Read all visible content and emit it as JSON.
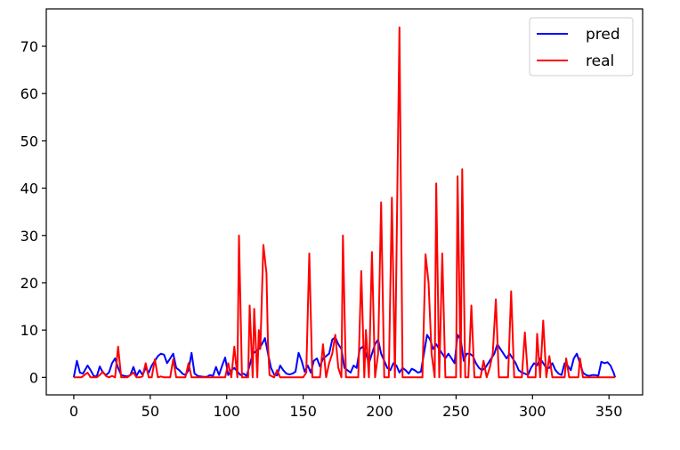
{
  "chart_data": {
    "type": "line",
    "title": "",
    "xlabel": "",
    "ylabel": "",
    "xlim": [
      -18,
      372
    ],
    "ylim": [
      -3.7,
      77.9
    ],
    "xticks": [
      0,
      50,
      100,
      150,
      200,
      250,
      300,
      350
    ],
    "yticks": [
      0,
      10,
      20,
      30,
      40,
      50,
      60,
      70
    ],
    "grid": false,
    "legend": {
      "position": "top-right",
      "entries": [
        "pred",
        "real"
      ]
    },
    "series": [
      {
        "name": "pred",
        "color": "#0000ff",
        "points": [
          [
            0,
            0
          ],
          [
            2,
            3.5
          ],
          [
            4,
            1
          ],
          [
            6,
            0.8
          ],
          [
            9,
            2.5
          ],
          [
            11,
            1.5
          ],
          [
            13,
            0.3
          ],
          [
            15,
            0.2
          ],
          [
            17,
            2.3
          ],
          [
            19,
            1
          ],
          [
            21,
            0.5
          ],
          [
            23,
            1
          ],
          [
            25,
            3
          ],
          [
            27,
            4
          ],
          [
            29,
            2
          ],
          [
            31,
            0.5
          ],
          [
            33,
            0.3
          ],
          [
            35,
            0.2
          ],
          [
            37,
            0.5
          ],
          [
            39,
            2.2
          ],
          [
            41,
            0.3
          ],
          [
            43,
            1.5
          ],
          [
            45,
            0.5
          ],
          [
            47,
            2
          ],
          [
            49,
            1
          ],
          [
            51,
            2.5
          ],
          [
            53,
            3.5
          ],
          [
            55,
            4.5
          ],
          [
            57,
            5
          ],
          [
            59,
            4.8
          ],
          [
            61,
            3
          ],
          [
            63,
            4
          ],
          [
            65,
            5
          ],
          [
            67,
            2
          ],
          [
            69,
            1.5
          ],
          [
            71,
            0.8
          ],
          [
            73,
            0.5
          ],
          [
            75,
            1.5
          ],
          [
            77,
            5.2
          ],
          [
            79,
            0.8
          ],
          [
            81,
            0.3
          ],
          [
            83,
            0.2
          ],
          [
            85,
            0.1
          ],
          [
            87,
            0.1
          ],
          [
            89,
            0.5
          ],
          [
            91,
            0.3
          ],
          [
            93,
            2.2
          ],
          [
            95,
            0.5
          ],
          [
            97,
            2.5
          ],
          [
            99,
            4.2
          ],
          [
            101,
            0.5
          ],
          [
            103,
            1.5
          ],
          [
            105,
            2
          ],
          [
            107,
            1.2
          ],
          [
            109,
            0.5
          ],
          [
            111,
            0.8
          ],
          [
            113,
            0.3
          ],
          [
            115,
            2.5
          ],
          [
            117,
            5
          ],
          [
            119,
            5.5
          ],
          [
            121,
            6
          ],
          [
            123,
            7
          ],
          [
            125,
            8.3
          ],
          [
            127,
            5
          ],
          [
            129,
            2
          ],
          [
            131,
            0.6
          ],
          [
            133,
            0.4
          ],
          [
            135,
            2.5
          ],
          [
            137,
            1.5
          ],
          [
            139,
            0.8
          ],
          [
            141,
            0.6
          ],
          [
            143,
            0.8
          ],
          [
            145,
            1.2
          ],
          [
            147,
            5.2
          ],
          [
            149,
            3.5
          ],
          [
            151,
            1.2
          ],
          [
            153,
            2.5
          ],
          [
            155,
            1
          ],
          [
            157,
            3.5
          ],
          [
            159,
            4
          ],
          [
            161,
            2.3
          ],
          [
            163,
            4
          ],
          [
            165,
            4.5
          ],
          [
            167,
            5
          ],
          [
            169,
            8
          ],
          [
            171,
            8.5
          ],
          [
            173,
            7
          ],
          [
            175,
            6
          ],
          [
            177,
            2
          ],
          [
            179,
            1.5
          ],
          [
            181,
            1
          ],
          [
            183,
            2.5
          ],
          [
            185,
            2
          ],
          [
            187,
            6
          ],
          [
            189,
            6.5
          ],
          [
            191,
            5
          ],
          [
            193,
            3
          ],
          [
            195,
            5
          ],
          [
            197,
            7
          ],
          [
            199,
            8
          ],
          [
            201,
            5
          ],
          [
            203,
            3.5
          ],
          [
            205,
            2
          ],
          [
            207,
            1.5
          ],
          [
            209,
            3
          ],
          [
            211,
            2.5
          ],
          [
            213,
            1
          ],
          [
            215,
            2
          ],
          [
            217,
            1.5
          ],
          [
            219,
            0.8
          ],
          [
            221,
            1.8
          ],
          [
            223,
            1.5
          ],
          [
            225,
            1
          ],
          [
            227,
            1.2
          ],
          [
            229,
            5
          ],
          [
            231,
            9
          ],
          [
            233,
            8
          ],
          [
            235,
            6
          ],
          [
            237,
            7
          ],
          [
            239,
            6
          ],
          [
            241,
            5
          ],
          [
            243,
            4
          ],
          [
            245,
            5
          ],
          [
            247,
            4
          ],
          [
            249,
            3
          ],
          [
            251,
            9
          ],
          [
            253,
            8
          ],
          [
            255,
            3.5
          ],
          [
            257,
            5
          ],
          [
            259,
            5
          ],
          [
            261,
            4.5
          ],
          [
            263,
            3
          ],
          [
            265,
            2
          ],
          [
            267,
            1.5
          ],
          [
            269,
            2
          ],
          [
            271,
            3
          ],
          [
            273,
            4
          ],
          [
            275,
            5
          ],
          [
            277,
            7
          ],
          [
            279,
            6
          ],
          [
            281,
            5
          ],
          [
            283,
            4
          ],
          [
            285,
            5
          ],
          [
            287,
            4
          ],
          [
            289,
            3
          ],
          [
            291,
            1.5
          ],
          [
            293,
            1
          ],
          [
            295,
            0.8
          ],
          [
            297,
            0.5
          ],
          [
            299,
            2
          ],
          [
            301,
            3
          ],
          [
            303,
            2.5
          ],
          [
            305,
            4
          ],
          [
            307,
            3
          ],
          [
            309,
            2
          ],
          [
            311,
            2
          ],
          [
            313,
            3
          ],
          [
            315,
            1.5
          ],
          [
            317,
            0.8
          ],
          [
            319,
            0.5
          ],
          [
            321,
            3
          ],
          [
            323,
            2.5
          ],
          [
            325,
            1.5
          ],
          [
            327,
            4
          ],
          [
            329,
            5
          ],
          [
            331,
            3
          ],
          [
            333,
            1
          ],
          [
            335,
            0.5
          ],
          [
            337,
            0.3
          ],
          [
            339,
            0.5
          ],
          [
            341,
            0.5
          ],
          [
            343,
            0.3
          ],
          [
            345,
            3.3
          ],
          [
            347,
            3
          ],
          [
            349,
            3.2
          ],
          [
            351,
            2.5
          ],
          [
            353,
            1
          ],
          [
            354,
            0
          ]
        ]
      },
      {
        "name": "real",
        "color": "#ff0000",
        "points": [
          [
            0,
            0
          ],
          [
            5,
            0
          ],
          [
            7,
            0.5
          ],
          [
            9,
            1
          ],
          [
            11,
            0
          ],
          [
            15,
            0
          ],
          [
            17,
            0.5
          ],
          [
            19,
            1.2
          ],
          [
            21,
            0.3
          ],
          [
            23,
            0
          ],
          [
            25,
            0.3
          ],
          [
            27,
            0
          ],
          [
            29,
            6.5
          ],
          [
            31,
            0
          ],
          [
            35,
            0
          ],
          [
            37,
            0.5
          ],
          [
            39,
            1
          ],
          [
            41,
            0
          ],
          [
            43,
            0
          ],
          [
            45,
            0.2
          ],
          [
            47,
            3
          ],
          [
            49,
            0
          ],
          [
            51,
            0
          ],
          [
            53,
            3.8
          ],
          [
            55,
            0
          ],
          [
            57,
            0.2
          ],
          [
            59,
            0
          ],
          [
            63,
            0
          ],
          [
            65,
            3.8
          ],
          [
            67,
            0
          ],
          [
            73,
            0
          ],
          [
            75,
            3
          ],
          [
            77,
            0
          ],
          [
            99,
            0
          ],
          [
            101,
            3
          ],
          [
            103,
            0
          ],
          [
            105,
            6.5
          ],
          [
            107,
            0
          ],
          [
            108,
            30
          ],
          [
            110,
            0
          ],
          [
            114,
            0
          ],
          [
            115,
            15.2
          ],
          [
            117,
            0
          ],
          [
            118,
            14.5
          ],
          [
            120,
            0
          ],
          [
            121,
            10
          ],
          [
            122,
            6
          ],
          [
            124,
            28
          ],
          [
            126,
            22
          ],
          [
            127,
            7
          ],
          [
            128,
            0.5
          ],
          [
            131,
            0
          ],
          [
            133,
            1.5
          ],
          [
            135,
            0
          ],
          [
            150,
            0
          ],
          [
            152,
            1
          ],
          [
            154,
            26.2
          ],
          [
            156,
            0
          ],
          [
            161,
            0
          ],
          [
            163,
            7
          ],
          [
            165,
            0
          ],
          [
            167,
            3
          ],
          [
            169,
            5
          ],
          [
            171,
            9
          ],
          [
            173,
            2
          ],
          [
            175,
            0
          ],
          [
            176,
            30
          ],
          [
            178,
            0
          ],
          [
            186,
            0
          ],
          [
            188,
            22.5
          ],
          [
            190,
            0
          ],
          [
            191,
            10
          ],
          [
            193,
            0
          ],
          [
            195,
            26.5
          ],
          [
            197,
            0
          ],
          [
            199,
            5
          ],
          [
            201,
            37
          ],
          [
            203,
            0
          ],
          [
            206,
            0
          ],
          [
            208,
            38
          ],
          [
            210,
            0
          ],
          [
            213,
            74
          ],
          [
            215,
            0
          ],
          [
            228,
            0
          ],
          [
            230,
            26
          ],
          [
            232,
            20
          ],
          [
            234,
            5
          ],
          [
            236,
            0
          ],
          [
            237,
            41
          ],
          [
            239,
            0
          ],
          [
            241,
            26.2
          ],
          [
            243,
            0
          ],
          [
            250,
            0
          ],
          [
            251,
            42.5
          ],
          [
            253,
            0
          ],
          [
            254,
            44
          ],
          [
            256,
            0
          ],
          [
            258,
            0
          ],
          [
            260,
            15.2
          ],
          [
            262,
            0
          ],
          [
            266,
            0
          ],
          [
            268,
            3.5
          ],
          [
            270,
            0
          ],
          [
            272,
            2
          ],
          [
            274,
            5
          ],
          [
            276,
            16.5
          ],
          [
            278,
            0
          ],
          [
            284,
            0
          ],
          [
            286,
            18.2
          ],
          [
            288,
            0
          ],
          [
            293,
            0
          ],
          [
            295,
            9.5
          ],
          [
            297,
            0
          ],
          [
            302,
            0
          ],
          [
            303,
            9.2
          ],
          [
            305,
            0
          ],
          [
            307,
            12
          ],
          [
            309,
            0
          ],
          [
            311,
            4.5
          ],
          [
            313,
            0
          ],
          [
            321,
            0
          ],
          [
            322,
            4
          ],
          [
            324,
            0
          ],
          [
            330,
            0
          ],
          [
            331,
            4
          ],
          [
            333,
            0
          ],
          [
            354,
            0
          ]
        ]
      }
    ]
  }
}
